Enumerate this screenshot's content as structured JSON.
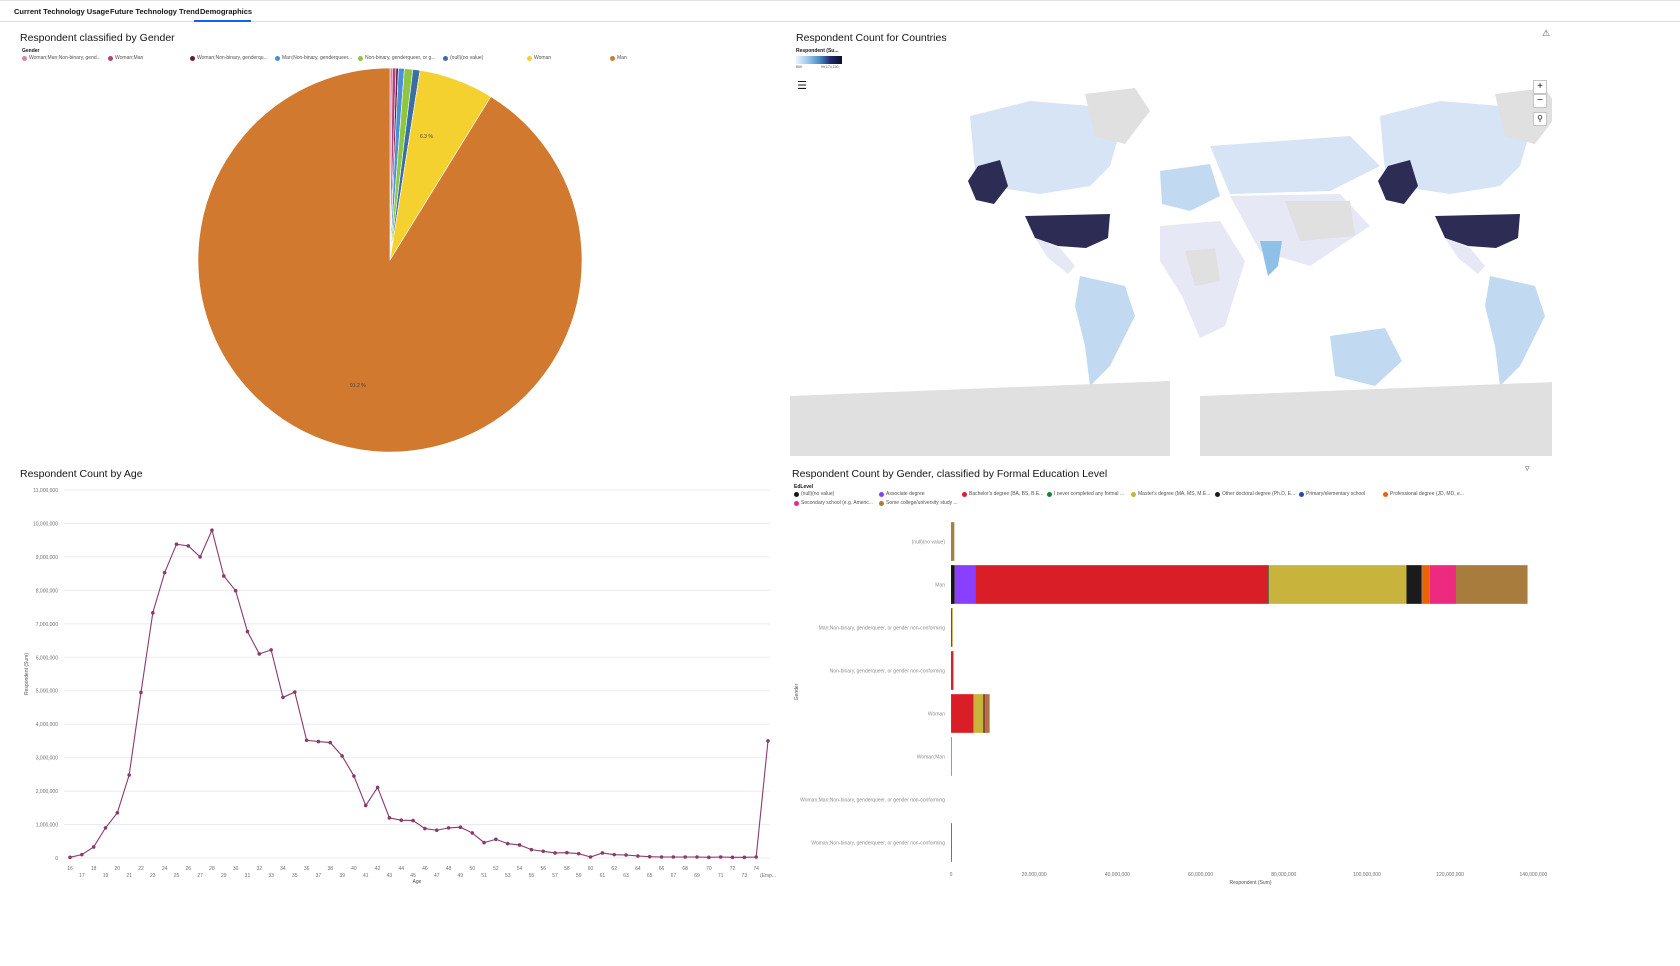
{
  "tabs": [
    {
      "label": "Current Technology Usage"
    },
    {
      "label": "Future Technology Trend"
    },
    {
      "label": "Demographics"
    }
  ],
  "colors": {
    "accent": "#0f62fe"
  },
  "icons": {
    "warning": "warning-icon",
    "filter": "filter-icon",
    "layers": "layers-icon",
    "zoom_in": "plus-icon",
    "zoom_out": "minus-icon",
    "search": "search-icon"
  },
  "gender_pie": {
    "title": "Respondent classified by Gender",
    "legend_title": "Gender",
    "legend": [
      {
        "label": "Woman;Man;Non-binary, gend...",
        "color": "#e07fa8"
      },
      {
        "label": "Woman;Man",
        "color": "#b0447e"
      },
      {
        "label": "Woman;Non-binary, genderqu...",
        "color": "#6a1a3a"
      },
      {
        "label": "Man;Non-binary, genderqueer...",
        "color": "#4a90d9"
      },
      {
        "label": "Non-binary, genderqueer, or g...",
        "color": "#8dc63f"
      },
      {
        "label": "(null)(no value)",
        "color": "#3a6ea5"
      },
      {
        "label": "Woman",
        "color": "#f5d130"
      },
      {
        "label": "Man",
        "color": "#d17a2f"
      }
    ],
    "label_women": "6.3 %",
    "label_men": "91.2 %"
  },
  "chart_data": [
    {
      "type": "pie",
      "title": "Respondent classified by Gender",
      "legend_title": "Gender",
      "categories": [
        "Woman;Man;Non-binary, gend...",
        "Woman;Man",
        "Woman;Non-binary, genderqu...",
        "Man;Non-binary, genderqueer...",
        "Non-binary, genderqueer, or g...",
        "(null)(no value)",
        "Woman",
        "Man"
      ],
      "values": [
        0.2,
        0.3,
        0.2,
        0.5,
        0.7,
        0.6,
        6.3,
        91.2
      ],
      "unit": "%"
    },
    {
      "type": "line",
      "title": "Respondent Count by Age",
      "xlabel": "Age",
      "ylabel": "Respondent (Sum)",
      "x": [
        "16",
        "17",
        "18",
        "19",
        "20",
        "21",
        "22",
        "23",
        "24",
        "25",
        "26",
        "27",
        "28",
        "29",
        "30",
        "31",
        "32",
        "33",
        "34",
        "35",
        "36",
        "37",
        "38",
        "39",
        "40",
        "41",
        "42",
        "43",
        "44",
        "45",
        "46",
        "47",
        "48",
        "49",
        "50",
        "51",
        "52",
        "53",
        "54",
        "55",
        "56",
        "57",
        "58",
        "59",
        "60",
        "61",
        "62",
        "63",
        "64",
        "65",
        "66",
        "67",
        "68",
        "69",
        "70",
        "71",
        "72",
        "73",
        "74",
        "(Emp..."
      ],
      "values": [
        20000,
        100000,
        330000,
        900000,
        1350000,
        2480000,
        4950000,
        7330000,
        8530000,
        9380000,
        9330000,
        9000000,
        9800000,
        8430000,
        7990000,
        6770000,
        6100000,
        6220000,
        4800000,
        4960000,
        3520000,
        3480000,
        3450000,
        3050000,
        2450000,
        1570000,
        2110000,
        1200000,
        1130000,
        1120000,
        880000,
        830000,
        900000,
        920000,
        750000,
        460000,
        560000,
        430000,
        390000,
        250000,
        200000,
        150000,
        160000,
        130000,
        30000,
        150000,
        100000,
        90000,
        60000,
        40000,
        30000,
        30000,
        30000,
        30000,
        20000,
        30000,
        20000,
        20000,
        30000,
        3500000
      ],
      "ylim": [
        0,
        11000000
      ],
      "y_ticks": [
        "0",
        "1,000,000",
        "2,000,000",
        "3,000,000",
        "4,000,000",
        "5,000,000",
        "6,000,000",
        "7,000,000",
        "8,000,000",
        "9,000,000",
        "10,000,000",
        "11,000,000"
      ],
      "x_ticks_top": [
        "16",
        "18",
        "20",
        "22",
        "24",
        "26",
        "28",
        "30",
        "32",
        "34",
        "36",
        "38",
        "40",
        "42",
        "44",
        "46",
        "48",
        "50",
        "52",
        "54",
        "56",
        "58",
        "60",
        "62",
        "64",
        "66",
        "68",
        "70",
        "72",
        "74"
      ],
      "x_ticks_bottom": [
        "17",
        "19",
        "21",
        "23",
        "25",
        "27",
        "29",
        "31",
        "33",
        "35",
        "37",
        "39",
        "41",
        "43",
        "45",
        "47",
        "49",
        "51",
        "53",
        "55",
        "57",
        "59",
        "61",
        "63",
        "65",
        "67",
        "69",
        "71",
        "73",
        "(Emp..."
      ],
      "grid": true
    },
    {
      "type": "bar",
      "orientation": "horizontal",
      "stacked": true,
      "title": "Respondent Count by Gender, classified by Formal Education Level",
      "legend_title": "EdLevel",
      "xlabel": "Respondent (Sum)",
      "ylabel": "Gender",
      "categories": [
        "(null)(no value)",
        "Man",
        "Man;Non-binary, genderqueer, or gender non-conforming",
        "Non-binary, genderqueer, or gender non-conforming",
        "Woman",
        "Woman;Man",
        "Woman;Man;Non-binary, genderqueer, or gender non-conforming",
        "Woman;Non-binary, genderqueer, or gender non-conforming"
      ],
      "x_ticks": [
        "0",
        "20,000,000",
        "40,000,000",
        "60,000,000",
        "80,000,000",
        "100,000,000",
        "120,000,000",
        "140,000,000"
      ],
      "xlim": [
        0,
        144000000
      ],
      "series": [
        {
          "name": "(null)(no value)",
          "color": "#161616",
          "values": [
            0,
            900000,
            0,
            0,
            0,
            0,
            0,
            0
          ]
        },
        {
          "name": "Associate degree",
          "color": "#8a3ffc",
          "values": [
            0,
            4900000,
            0,
            0,
            100000,
            0,
            0,
            0
          ]
        },
        {
          "name": "Bachelor's degree (BA, BS, B.E...",
          "color": "#da1e28",
          "values": [
            0,
            70500000,
            300000,
            500000,
            5300000,
            100000,
            0,
            200000
          ]
        },
        {
          "name": "I never completed any formal ...",
          "color": "#198038",
          "values": [
            0,
            200000,
            0,
            0,
            0,
            0,
            0,
            0
          ]
        },
        {
          "name": "Master's degree (MA, MS, M.E...",
          "color": "#c8b43c",
          "values": [
            0,
            33000000,
            100000,
            200000,
            2400000,
            0,
            0,
            0
          ]
        },
        {
          "name": "Other doctoral degree (Ph.D, E...",
          "color": "#1b1b1b",
          "values": [
            0,
            3500000,
            0,
            0,
            300000,
            0,
            0,
            0
          ]
        },
        {
          "name": "Primary/elementary school",
          "color": "#1f4ea8",
          "values": [
            0,
            300000,
            0,
            0,
            0,
            0,
            0,
            0
          ]
        },
        {
          "name": "Professional degree (JD, MD, e...",
          "color": "#eb6200",
          "values": [
            0,
            1800000,
            0,
            0,
            300000,
            0,
            0,
            0
          ]
        },
        {
          "name": "Secondary school (e.g. Americ...",
          "color": "#ee2a80",
          "values": [
            0,
            6300000,
            0,
            0,
            100000,
            0,
            0,
            0
          ]
        },
        {
          "name": "Some college/university study ...",
          "color": "#a87c3c",
          "values": [
            800000,
            17200000,
            0,
            0,
            800000,
            0,
            0,
            0
          ]
        }
      ]
    }
  ],
  "map": {
    "title": "Respondent Count for Countries",
    "legend_title": "Respondent (Su...",
    "legend_min": "869",
    "legend_max": "99,174,150"
  },
  "age_chart": {
    "title": "Respondent Count by Age",
    "xlabel": "Age",
    "ylabel": "Respondent (Sum)"
  },
  "edu_chart": {
    "title": "Respondent Count by Gender, classified by Formal Education Level",
    "legend_title": "EdLevel",
    "xlabel": "Respondent (Sum)",
    "ylabel": "Gender"
  }
}
